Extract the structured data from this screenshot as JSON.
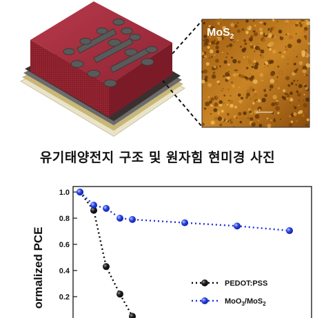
{
  "afm": {
    "label_main": "MoS",
    "label_sub": "2"
  },
  "caption": "유기태양전지 구조 및 원자힘 현미경 사진",
  "chart_data": {
    "type": "line",
    "ylabel": "ormalized PCE",
    "ylim": [
      0,
      1.05
    ],
    "yticks": [
      "0.2",
      "0.4",
      "0.6",
      "0.8",
      "1.0"
    ],
    "series": [
      {
        "name": "PEDOT:PSS",
        "name_sub": "",
        "name_tail": "",
        "color": "#000000",
        "x": [
          0,
          1,
          2,
          3,
          4
        ],
        "y": [
          1.0,
          0.86,
          0.43,
          0.22,
          0.05
        ]
      },
      {
        "name": "MoO",
        "name_sub": "3",
        "name_tail": "/MoS",
        "name_sub2": "2",
        "color": "#1a2fd6",
        "x": [
          0,
          1,
          2,
          3,
          4,
          8,
          12,
          16
        ],
        "y": [
          1.0,
          0.9,
          0.875,
          0.8,
          0.79,
          0.765,
          0.74,
          0.705
        ]
      }
    ]
  }
}
